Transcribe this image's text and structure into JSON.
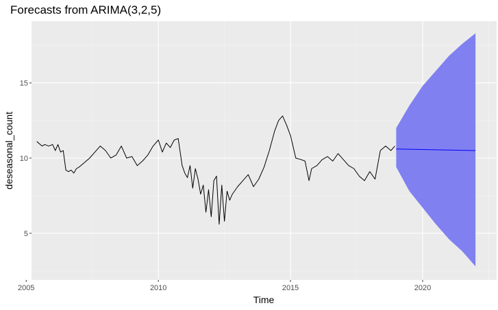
{
  "chart_data": {
    "type": "line",
    "title": "Forecasts from ARIMA(3,2,5)",
    "xlabel": "Time",
    "ylabel": "deseasonal_count",
    "xlim": [
      2005.2,
      2022.8
    ],
    "ylim": [
      1.9,
      19.1
    ],
    "x_ticks": [
      2005,
      2010,
      2015,
      2020
    ],
    "x_tick_labels": [
      "2005",
      "2010",
      "2015",
      "2020"
    ],
    "x_minor_ticks": [
      2007.5,
      2012.5,
      2017.5,
      2022.5
    ],
    "y_ticks": [
      5,
      10,
      15
    ],
    "y_tick_labels": [
      "5",
      "10",
      "15"
    ],
    "y_minor_ticks": [
      2.5,
      7.5,
      12.5,
      17.5
    ],
    "grid": true,
    "background": "#ebebeb",
    "series": [
      {
        "role": "observed",
        "color": "#000000",
        "x": [
          2005.4,
          2005.6,
          2005.7,
          2005.85,
          2006.0,
          2006.1,
          2006.2,
          2006.3,
          2006.4,
          2006.5,
          2006.6,
          2006.7,
          2006.8,
          2006.9,
          2007.0,
          2007.2,
          2007.4,
          2007.6,
          2007.8,
          2008.0,
          2008.2,
          2008.4,
          2008.6,
          2008.8,
          2009.0,
          2009.2,
          2009.4,
          2009.6,
          2009.8,
          2010.0,
          2010.15,
          2010.3,
          2010.45,
          2010.6,
          2010.75,
          2010.9,
          2011.0,
          2011.1,
          2011.2,
          2011.3,
          2011.4,
          2011.5,
          2011.6,
          2011.7,
          2011.8,
          2011.9,
          2012.0,
          2012.1,
          2012.2,
          2012.3,
          2012.4,
          2012.5,
          2012.6,
          2012.7,
          2012.8,
          2013.0,
          2013.2,
          2013.4,
          2013.6,
          2013.8,
          2014.0,
          2014.2,
          2014.4,
          2014.55,
          2014.7,
          2014.85,
          2015.0,
          2015.2,
          2015.4,
          2015.55,
          2015.7,
          2015.8,
          2016.0,
          2016.2,
          2016.4,
          2016.6,
          2016.8,
          2017.0,
          2017.2,
          2017.4,
          2017.6,
          2017.8,
          2018.0,
          2018.2,
          2018.4,
          2018.6,
          2018.8,
          2018.95
        ],
        "y": [
          11.1,
          10.8,
          10.9,
          10.8,
          10.9,
          10.5,
          10.9,
          10.4,
          10.5,
          9.2,
          9.1,
          9.2,
          9.0,
          9.3,
          9.4,
          9.7,
          10.0,
          10.4,
          10.8,
          10.5,
          10.0,
          10.2,
          10.8,
          10.0,
          10.1,
          9.5,
          9.8,
          10.2,
          10.8,
          11.2,
          10.4,
          11.0,
          10.7,
          11.2,
          11.3,
          9.5,
          9.0,
          8.7,
          9.5,
          8.0,
          9.3,
          8.6,
          7.6,
          8.2,
          6.4,
          7.9,
          6.1,
          8.5,
          8.8,
          5.6,
          8.2,
          5.8,
          7.8,
          7.2,
          7.6,
          8.1,
          8.5,
          8.9,
          8.1,
          8.6,
          9.4,
          10.5,
          11.8,
          12.5,
          12.8,
          12.2,
          11.5,
          10.0,
          9.9,
          9.8,
          8.5,
          9.3,
          9.5,
          9.9,
          10.1,
          9.8,
          10.3,
          9.9,
          9.5,
          9.3,
          8.8,
          8.5,
          9.1,
          8.6,
          10.5,
          10.8,
          10.5,
          10.8
        ]
      },
      {
        "role": "forecast",
        "color": "#0000ff",
        "x": [
          2019.0,
          2022.0
        ],
        "y": [
          10.6,
          10.5
        ]
      }
    ],
    "interval": {
      "color": "#8080f0",
      "x": [
        2019.0,
        2019.5,
        2020.0,
        2020.5,
        2021.0,
        2021.5,
        2022.0
      ],
      "lower": [
        9.4,
        7.8,
        6.7,
        5.6,
        4.6,
        3.8,
        2.8
      ],
      "upper": [
        12.0,
        13.5,
        14.8,
        15.8,
        16.8,
        17.6,
        18.3
      ]
    }
  }
}
